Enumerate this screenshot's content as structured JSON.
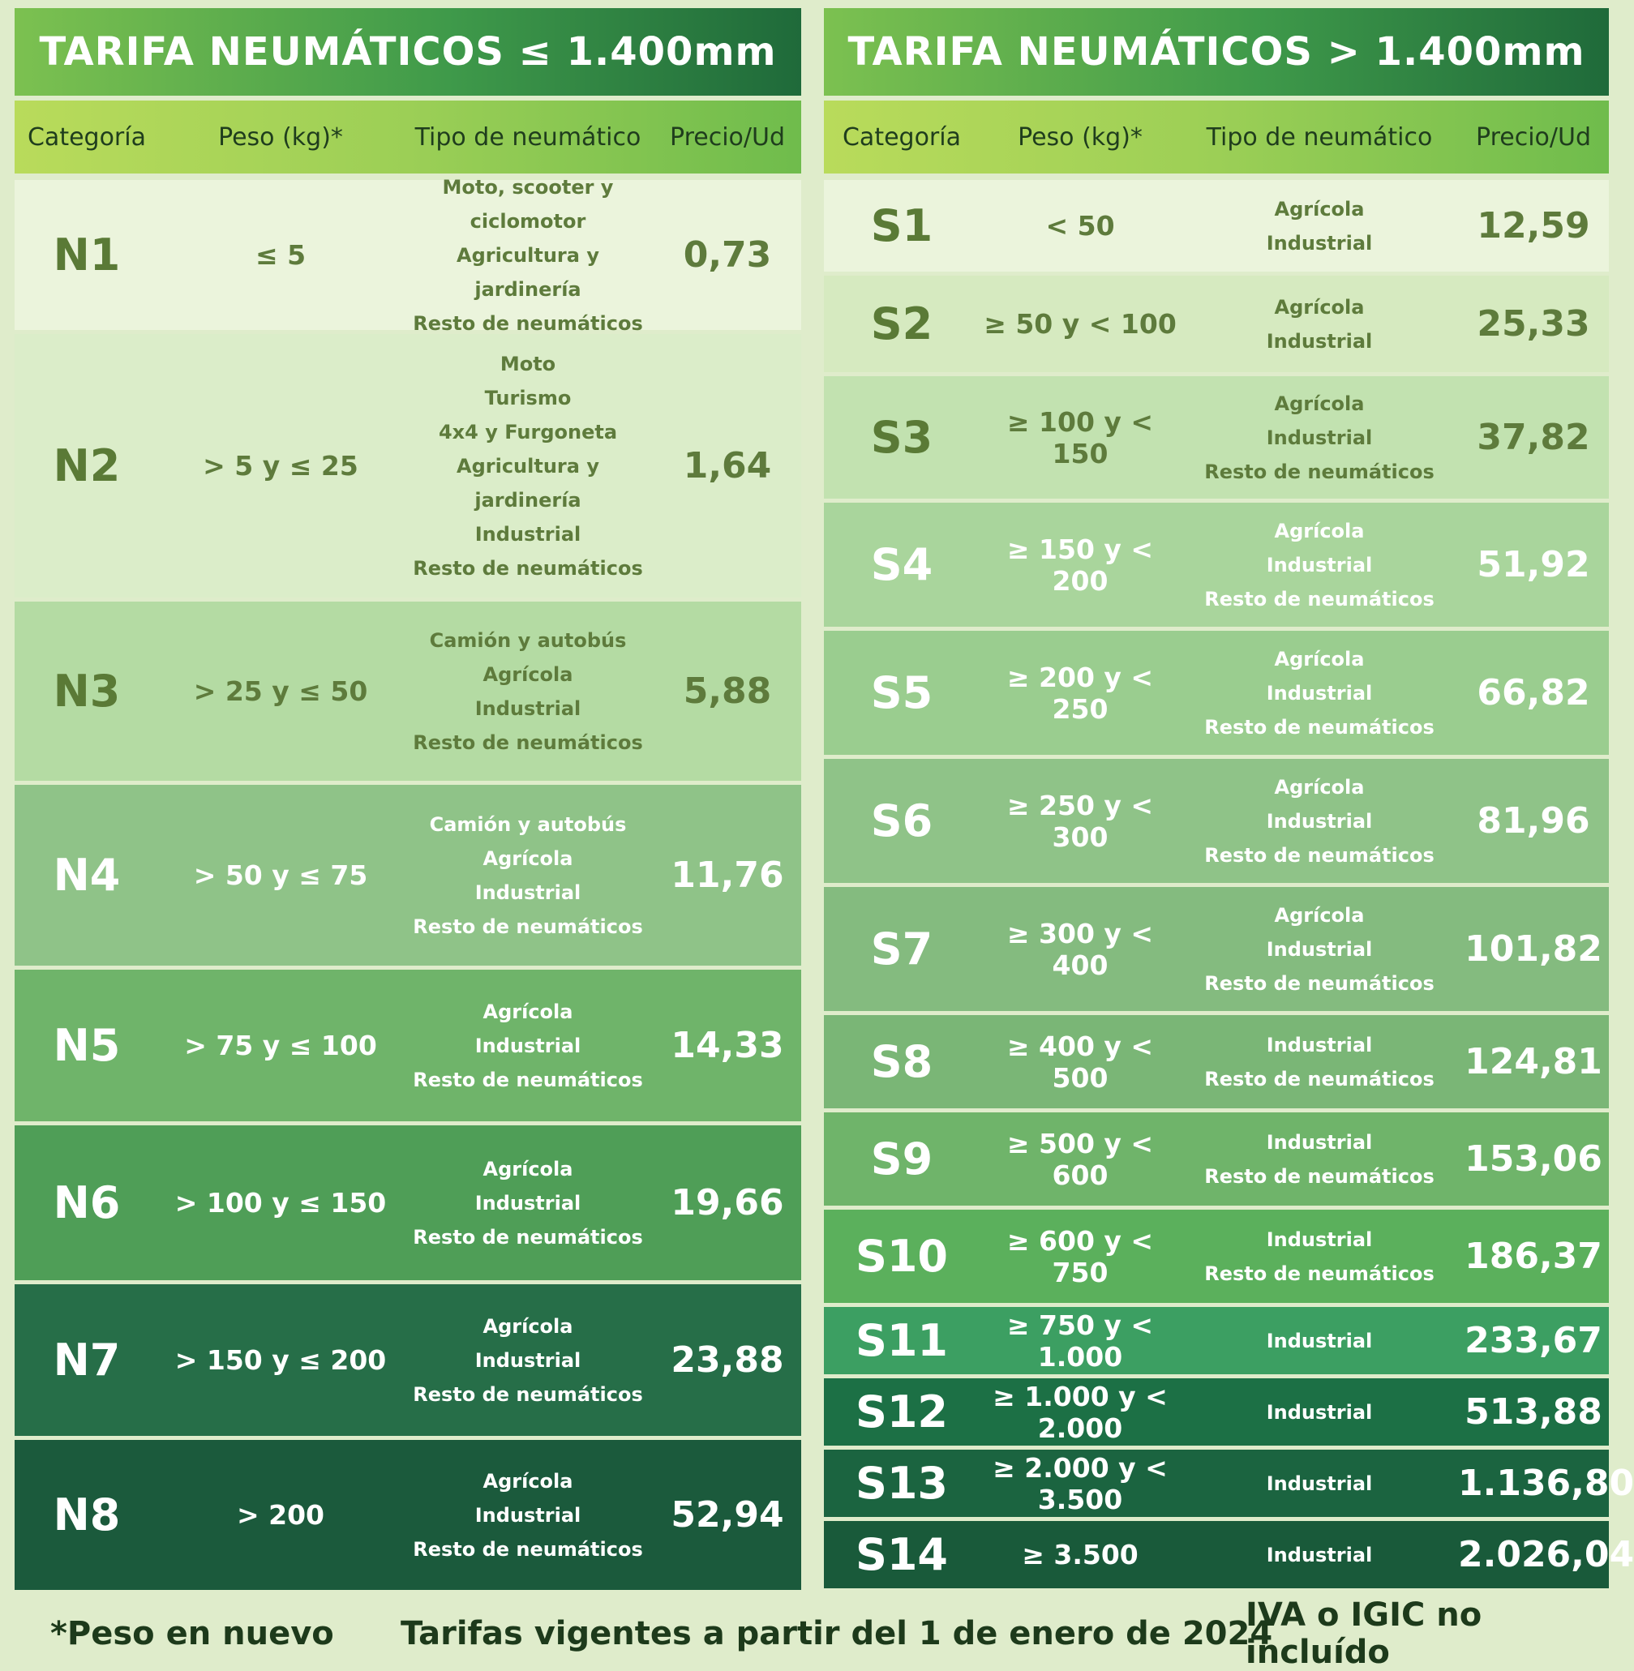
{
  "left": {
    "title": "TARIFA NEUMÁTICOS ≤ 1.400mm",
    "headers": [
      "Categoría",
      "Peso (kg)*",
      "Tipo de neumático",
      "Precio/Ud"
    ],
    "rows": [
      {
        "cat": "N1",
        "peso": "≤ 5",
        "types": [
          "Moto, scooter y ciclomotor",
          "Agricultura y jardinería",
          "Resto de neumáticos"
        ],
        "price": "0,73"
      },
      {
        "cat": "N2",
        "peso": "> 5 y ≤ 25",
        "types": [
          "Moto",
          "Turismo",
          "4x4 y Furgoneta",
          "Agricultura y jardinería",
          "Industrial",
          "Resto de neumáticos"
        ],
        "price": "1,64"
      },
      {
        "cat": "N3",
        "peso": "> 25 y ≤ 50",
        "types": [
          "Camión y autobús",
          "Agrícola",
          "Industrial",
          "Resto de neumáticos"
        ],
        "price": "5,88"
      },
      {
        "cat": "N4",
        "peso": "> 50 y ≤ 75",
        "types": [
          "Camión y autobús",
          "Agrícola",
          "Industrial",
          "Resto de neumáticos"
        ],
        "price": "11,76"
      },
      {
        "cat": "N5",
        "peso": "> 75 y ≤ 100",
        "types": [
          "Agrícola",
          "Industrial",
          "Resto de neumáticos"
        ],
        "price": "14,33"
      },
      {
        "cat": "N6",
        "peso": "> 100 y ≤ 150",
        "types": [
          "Agrícola",
          "Industrial",
          "Resto de neumáticos"
        ],
        "price": "19,66"
      },
      {
        "cat": "N7",
        "peso": "> 150 y ≤ 200",
        "types": [
          "Agrícola",
          "Industrial",
          "Resto de neumáticos"
        ],
        "price": "23,88"
      },
      {
        "cat": "N8",
        "peso": "> 200",
        "types": [
          "Agrícola",
          "Industrial",
          "Resto de neumáticos"
        ],
        "price": "52,94"
      }
    ]
  },
  "right": {
    "title": "TARIFA NEUMÁTICOS > 1.400mm",
    "headers": [
      "Categoría",
      "Peso (kg)*",
      "Tipo de neumático",
      "Precio/Ud"
    ],
    "rows": [
      {
        "cat": "S1",
        "peso": "< 50",
        "types": [
          "Agrícola",
          "Industrial"
        ],
        "price": "12,59"
      },
      {
        "cat": "S2",
        "peso": "≥ 50 y < 100",
        "types": [
          "Agrícola",
          "Industrial"
        ],
        "price": "25,33"
      },
      {
        "cat": "S3",
        "peso": "≥ 100 y < 150",
        "types": [
          "Agrícola",
          "Industrial",
          "Resto de neumáticos"
        ],
        "price": "37,82"
      },
      {
        "cat": "S4",
        "peso": "≥ 150 y < 200",
        "types": [
          "Agrícola",
          "Industrial",
          "Resto de neumáticos"
        ],
        "price": "51,92"
      },
      {
        "cat": "S5",
        "peso": "≥ 200 y < 250",
        "types": [
          "Agrícola",
          "Industrial",
          "Resto de neumáticos"
        ],
        "price": "66,82"
      },
      {
        "cat": "S6",
        "peso": "≥ 250 y < 300",
        "types": [
          "Agrícola",
          "Industrial",
          "Resto de neumáticos"
        ],
        "price": "81,96"
      },
      {
        "cat": "S7",
        "peso": "≥ 300 y < 400",
        "types": [
          "Agrícola",
          "Industrial",
          "Resto de neumáticos"
        ],
        "price": "101,82"
      },
      {
        "cat": "S8",
        "peso": "≥ 400 y < 500",
        "types": [
          "Industrial",
          "Resto de neumáticos"
        ],
        "price": "124,81"
      },
      {
        "cat": "S9",
        "peso": "≥ 500 y < 600",
        "types": [
          "Industrial",
          "Resto de neumáticos"
        ],
        "price": "153,06"
      },
      {
        "cat": "S10",
        "peso": "≥ 600 y < 750",
        "types": [
          "Industrial",
          "Resto de neumáticos"
        ],
        "price": "186,37"
      },
      {
        "cat": "S11",
        "peso": "≥ 750 y < 1.000",
        "types": [
          "Industrial"
        ],
        "price": "233,67"
      },
      {
        "cat": "S12",
        "peso": "≥ 1.000 y < 2.000",
        "types": [
          "Industrial"
        ],
        "price": "513,88"
      },
      {
        "cat": "S13",
        "peso": "≥ 2.000 y < 3.500",
        "types": [
          "Industrial"
        ],
        "price": "1.136,80"
      },
      {
        "cat": "S14",
        "peso": "≥ 3.500",
        "types": [
          "Industrial"
        ],
        "price": "2.026,04"
      }
    ]
  },
  "footer": {
    "note": "*Peso en nuevo",
    "validity": "Tarifas vigentes a partir del 1 de enero de 2024",
    "tax": "IVA o IGIC no incluído"
  }
}
